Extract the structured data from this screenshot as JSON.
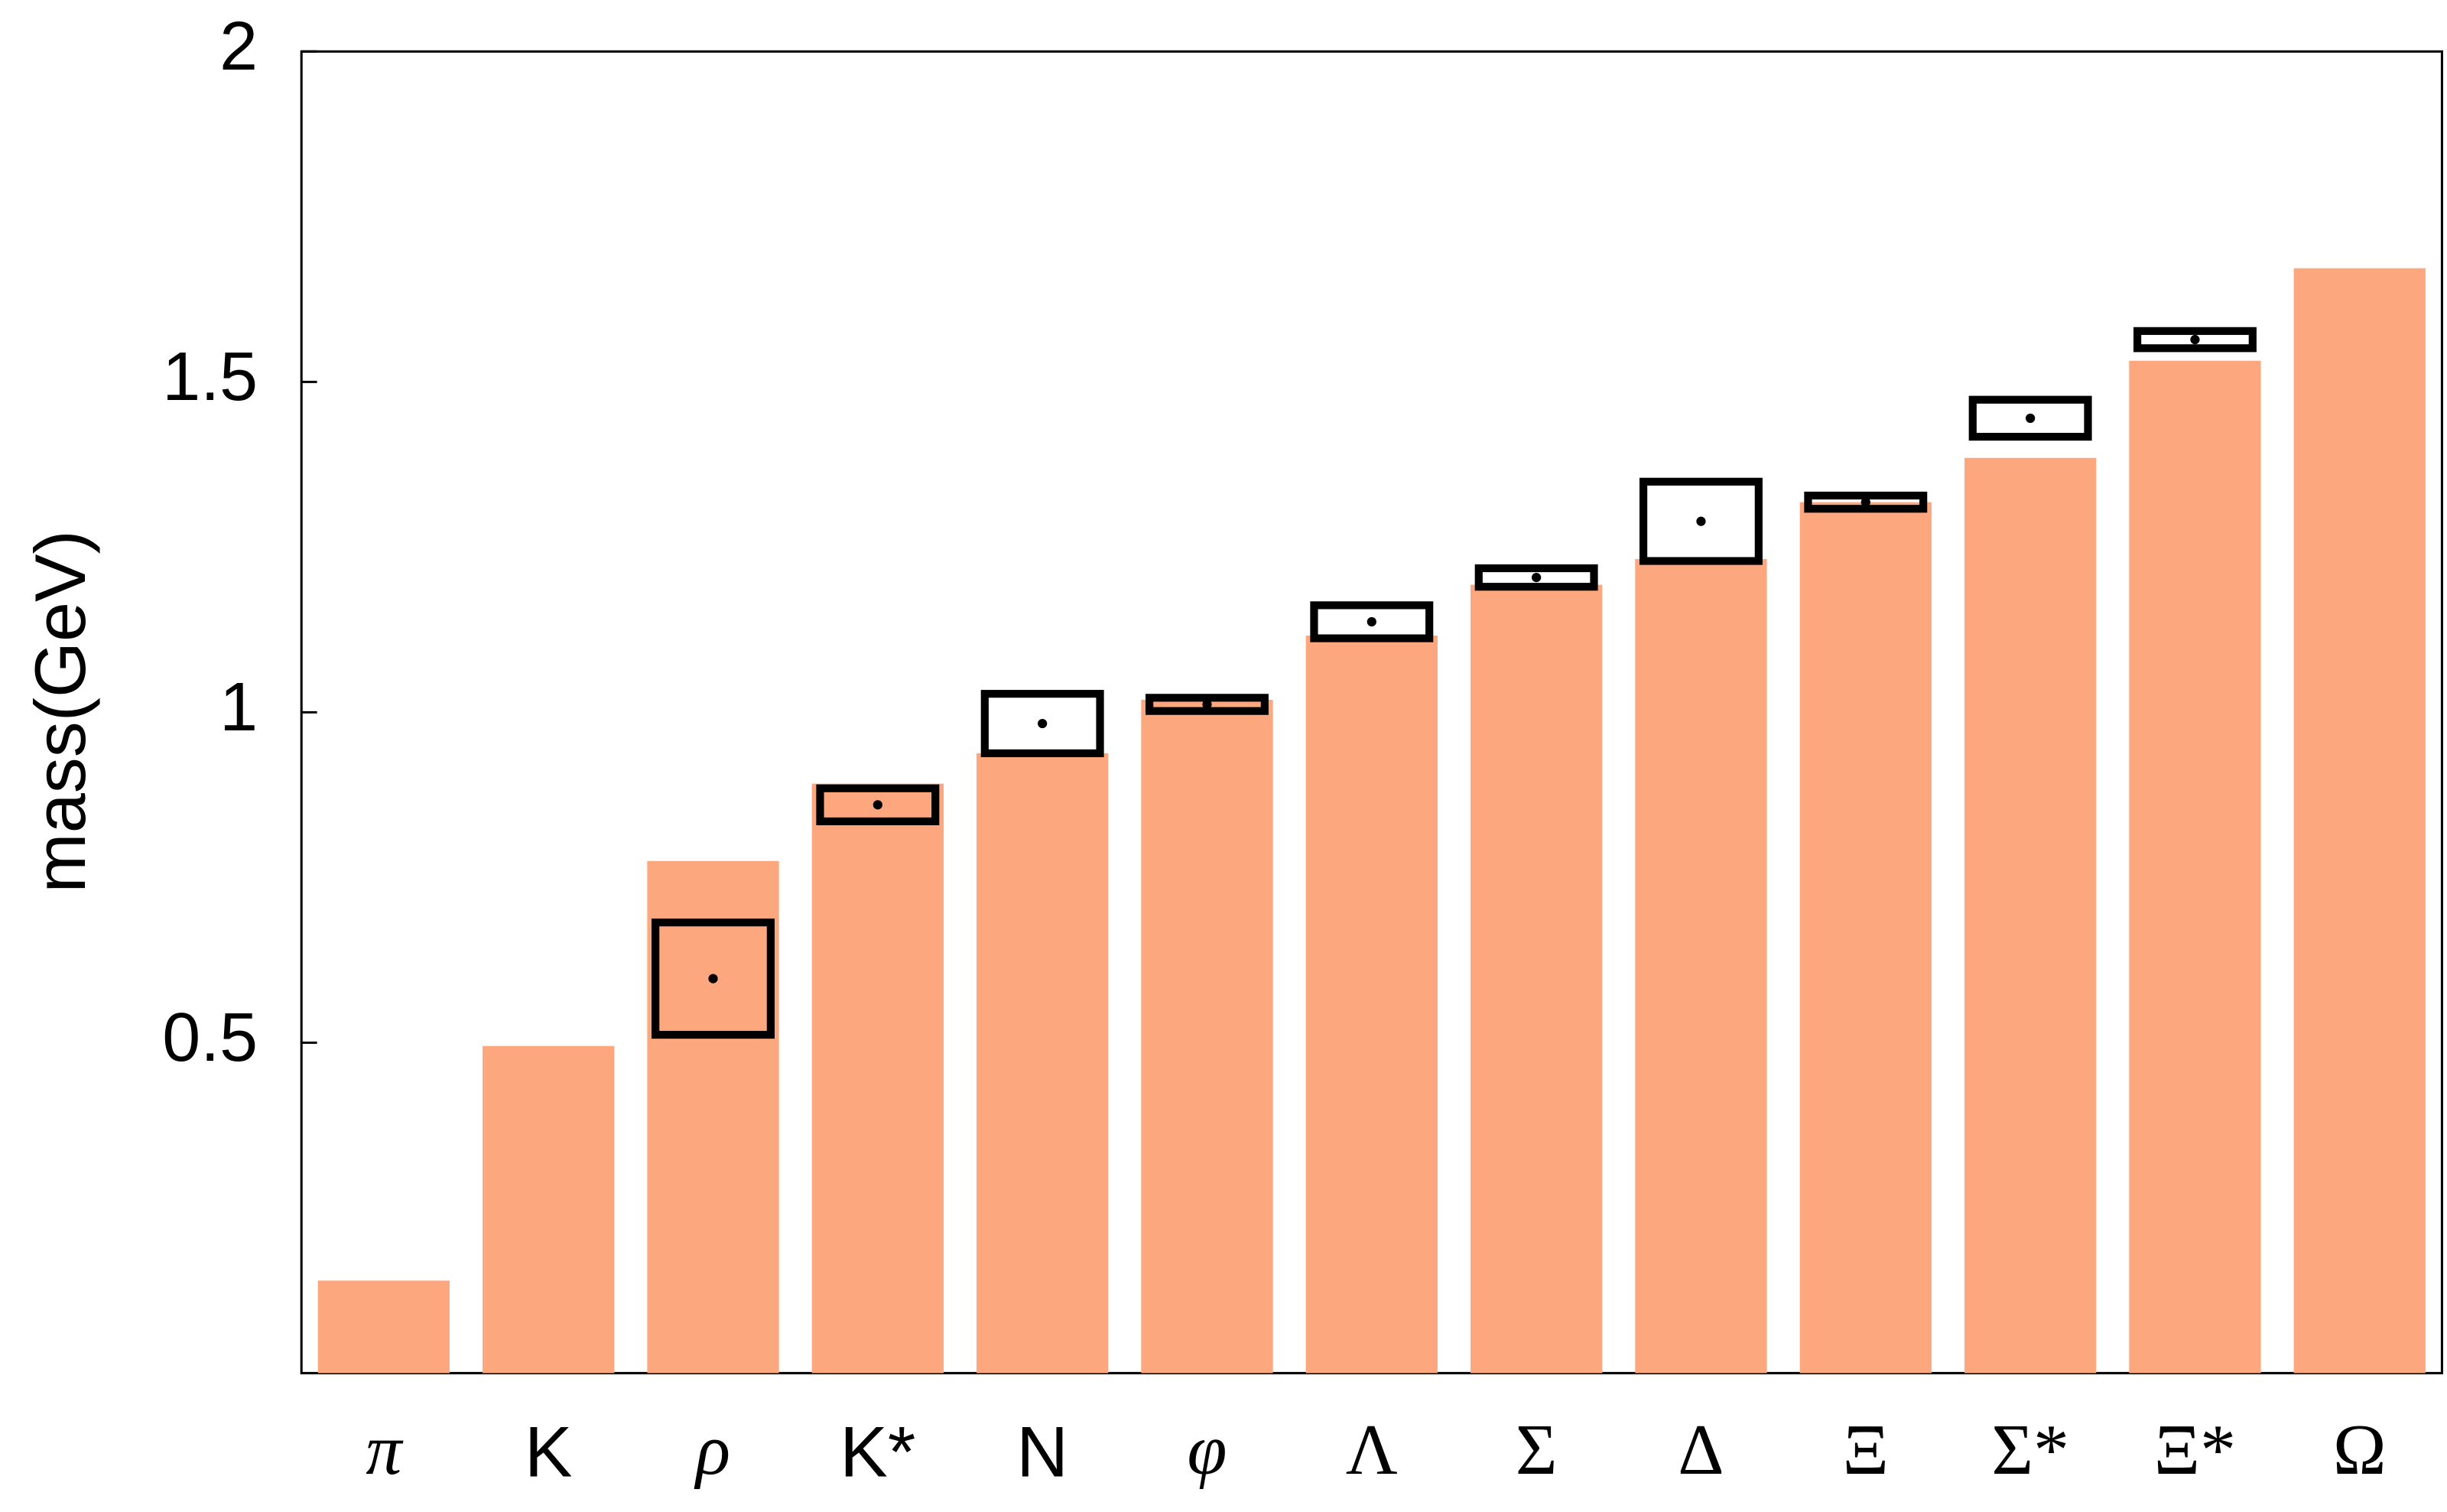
{
  "chart_data": {
    "type": "bar",
    "y_label": "mass(GeV)",
    "categories": [
      "π",
      "K",
      "ρ",
      "K*",
      "N",
      "φ",
      "Λ",
      "Σ",
      "Δ",
      "Ξ",
      "Σ*",
      "Ξ*",
      "Ω"
    ],
    "values": [
      0.14,
      0.495,
      0.775,
      0.892,
      0.938,
      1.019,
      1.116,
      1.193,
      1.232,
      1.318,
      1.385,
      1.532,
      1.672
    ],
    "color": "#fca77e",
    "box_values": [
      null,
      null,
      0.597,
      0.86,
      0.983,
      1.012,
      1.137,
      1.204,
      1.289,
      1.318,
      1.445,
      1.564,
      null
    ],
    "box_errors": [
      null,
      null,
      0.085,
      0.025,
      0.045,
      0.01,
      0.025,
      0.014,
      0.06,
      0.01,
      0.028,
      0.013,
      null
    ],
    "box_color": "#000000",
    "ylim": [
      0,
      2
    ],
    "yticks": [
      0.5,
      1,
      1.5,
      2
    ]
  }
}
